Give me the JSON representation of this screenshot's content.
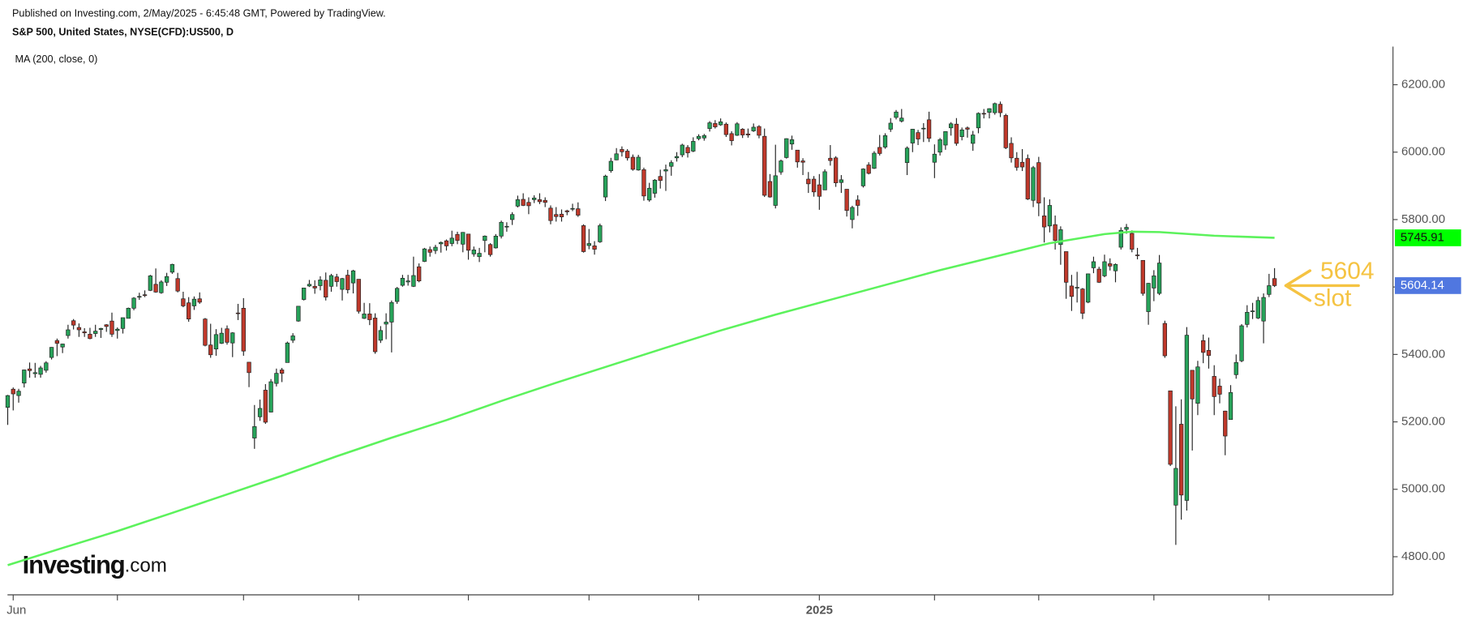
{
  "chart_data": {
    "type": "candlestick",
    "source_line": "Published on Investing.com, 2/May/2025 - 6:45:48 GMT, Powered by TradingView.",
    "title": "S&P 500, United States, NYSE(CFD):US500, D",
    "logo": {
      "main": "Investing",
      "suffix": ".com"
    },
    "annotation": {
      "value": "5604",
      "label": "slot",
      "color": "#f5c342"
    },
    "up_color": "#27a35a",
    "down_color": "#c0392b",
    "ylim": [
      4687,
      6313
    ],
    "yticks": [
      {
        "value": 4800,
        "label": "4800.00"
      },
      {
        "value": 5000,
        "label": "5000.00"
      },
      {
        "value": 5200,
        "label": "5200.00"
      },
      {
        "value": 5400,
        "label": "5400.00"
      },
      {
        "value": 5600,
        "label": "5600.00"
      },
      {
        "value": 5800,
        "label": "5800.00"
      },
      {
        "value": 6000,
        "label": "6000.00"
      },
      {
        "value": 6200,
        "label": "6200.00"
      }
    ],
    "xlim": [
      -1.4,
      252.6
    ],
    "xticks": [
      {
        "value": 1,
        "label": "Jun"
      },
      {
        "value": 20,
        "label": null
      },
      {
        "value": 43,
        "label": null
      },
      {
        "value": 64,
        "label": null
      },
      {
        "value": 84,
        "label": null
      },
      {
        "value": 106,
        "label": null
      },
      {
        "value": 126,
        "label": null
      },
      {
        "value": 148,
        "label": "2025"
      },
      {
        "value": 169,
        "label": null
      },
      {
        "value": 188,
        "label": null
      },
      {
        "value": 209,
        "label": null
      },
      {
        "value": 230,
        "label": null
      }
    ],
    "ma": {
      "name": "MA (200, close, 0)",
      "color": "#5cf25c",
      "tag_color": "#00ff00",
      "x": [
        0,
        10,
        20,
        30,
        40,
        50,
        60,
        70,
        80,
        90,
        100,
        110,
        120,
        130,
        140,
        150,
        160,
        170,
        180,
        190,
        200,
        205,
        210,
        220,
        231
      ],
      "values": [
        4775,
        4826,
        4876,
        4930,
        4985,
        5040,
        5098,
        5153,
        5205,
        5262,
        5316,
        5368,
        5420,
        5471,
        5518,
        5562,
        5606,
        5650,
        5690,
        5730,
        5757,
        5764,
        5763,
        5752,
        5745.91
      ]
    },
    "last_tag_color": "#5077e0",
    "ohlc": [
      [
        5243,
        5280,
        5191,
        5278
      ],
      [
        5297,
        5302,
        5234,
        5283
      ],
      [
        5278,
        5298,
        5257,
        5291
      ],
      [
        5315,
        5355,
        5302,
        5354
      ],
      [
        5357,
        5376,
        5331,
        5352
      ],
      [
        5343,
        5375,
        5331,
        5346
      ],
      [
        5341,
        5366,
        5331,
        5360
      ],
      [
        5353,
        5380,
        5346,
        5375
      ],
      [
        5391,
        5422,
        5385,
        5421
      ],
      [
        5441,
        5447,
        5395,
        5433
      ],
      [
        5422,
        5432,
        5404,
        5431
      ],
      [
        5456,
        5488,
        5447,
        5473
      ],
      [
        5500,
        5505,
        5474,
        5487
      ],
      [
        5480,
        5492,
        5452,
        5473
      ],
      [
        5467,
        5478,
        5452,
        5464
      ],
      [
        5460,
        5479,
        5445,
        5447
      ],
      [
        5462,
        5488,
        5452,
        5469
      ],
      [
        5474,
        5479,
        5449,
        5477
      ],
      [
        5488,
        5490,
        5467,
        5483
      ],
      [
        5499,
        5524,
        5452,
        5460
      ],
      [
        5471,
        5480,
        5447,
        5475
      ],
      [
        5477,
        5509,
        5462,
        5509
      ],
      [
        5507,
        5539,
        5507,
        5537
      ],
      [
        5537,
        5570,
        5531,
        5567
      ],
      [
        5572,
        5583,
        5562,
        5572
      ],
      [
        5577,
        5590,
        5570,
        5576
      ],
      [
        5590,
        5636,
        5588,
        5633
      ],
      [
        5608,
        5655,
        5583,
        5585
      ],
      [
        5583,
        5620,
        5580,
        5615
      ],
      [
        5614,
        5642,
        5603,
        5631
      ],
      [
        5644,
        5669,
        5639,
        5667
      ],
      [
        5625,
        5642,
        5584,
        5588
      ],
      [
        5565,
        5586,
        5540,
        5544
      ],
      [
        5553,
        5570,
        5497,
        5505
      ],
      [
        5544,
        5572,
        5532,
        5564
      ],
      [
        5565,
        5584,
        5550,
        5555
      ],
      [
        5505,
        5508,
        5424,
        5427
      ],
      [
        5428,
        5491,
        5390,
        5399
      ],
      [
        5416,
        5475,
        5396,
        5459
      ],
      [
        5433,
        5479,
        5431,
        5463
      ],
      [
        5476,
        5486,
        5429,
        5436
      ],
      [
        5434,
        5466,
        5392,
        5464
      ],
      [
        5523,
        5550,
        5502,
        5522
      ],
      [
        5537,
        5567,
        5396,
        5410
      ],
      [
        5377,
        5377,
        5303,
        5346
      ],
      [
        5152,
        5250,
        5120,
        5186
      ],
      [
        5215,
        5266,
        5203,
        5240
      ],
      [
        5294,
        5312,
        5194,
        5199
      ],
      [
        5229,
        5327,
        5228,
        5319
      ],
      [
        5314,
        5358,
        5305,
        5344
      ],
      [
        5354,
        5360,
        5318,
        5344
      ],
      [
        5376,
        5438,
        5376,
        5434
      ],
      [
        5442,
        5463,
        5434,
        5455
      ],
      [
        5499,
        5543,
        5497,
        5543
      ],
      [
        5563,
        5598,
        5560,
        5597
      ],
      [
        5603,
        5621,
        5600,
        5608
      ],
      [
        5602,
        5620,
        5580,
        5597
      ],
      [
        5604,
        5632,
        5590,
        5621
      ],
      [
        5620,
        5643,
        5560,
        5570
      ],
      [
        5602,
        5639,
        5586,
        5634
      ],
      [
        5630,
        5639,
        5601,
        5616
      ],
      [
        5593,
        5627,
        5560,
        5625
      ],
      [
        5635,
        5651,
        5581,
        5592
      ],
      [
        5612,
        5651,
        5581,
        5648
      ],
      [
        5623,
        5623,
        5521,
        5528
      ],
      [
        5507,
        5553,
        5505,
        5520
      ],
      [
        5520,
        5552,
        5487,
        5503
      ],
      [
        5508,
        5522,
        5402,
        5408
      ],
      [
        5442,
        5484,
        5434,
        5471
      ],
      [
        5490,
        5522,
        5445,
        5496
      ],
      [
        5496,
        5560,
        5406,
        5554
      ],
      [
        5557,
        5600,
        5550,
        5596
      ],
      [
        5605,
        5636,
        5601,
        5626
      ],
      [
        5615,
        5636,
        5604,
        5618
      ],
      [
        5602,
        5690,
        5600,
        5634
      ],
      [
        5660,
        5670,
        5614,
        5618
      ],
      [
        5676,
        5716,
        5674,
        5713
      ],
      [
        5711,
        5720,
        5690,
        5703
      ],
      [
        5708,
        5725,
        5698,
        5718
      ],
      [
        5728,
        5735,
        5702,
        5732
      ],
      [
        5737,
        5741,
        5708,
        5722
      ],
      [
        5729,
        5767,
        5721,
        5745
      ],
      [
        5756,
        5764,
        5727,
        5738
      ],
      [
        5727,
        5763,
        5703,
        5762
      ],
      [
        5757,
        5757,
        5681,
        5709
      ],
      [
        5698,
        5720,
        5690,
        5710
      ],
      [
        5690,
        5716,
        5674,
        5700
      ],
      [
        5738,
        5753,
        5703,
        5751
      ],
      [
        5726,
        5730,
        5690,
        5696
      ],
      [
        5716,
        5757,
        5714,
        5751
      ],
      [
        5751,
        5797,
        5744,
        5792
      ],
      [
        5778,
        5792,
        5764,
        5780
      ],
      [
        5800,
        5822,
        5784,
        5815
      ],
      [
        5840,
        5871,
        5836,
        5859
      ],
      [
        5860,
        5878,
        5840,
        5842
      ],
      [
        5851,
        5866,
        5816,
        5841
      ],
      [
        5859,
        5872,
        5849,
        5864
      ],
      [
        5859,
        5878,
        5846,
        5853
      ],
      [
        5857,
        5866,
        5837,
        5851
      ],
      [
        5834,
        5842,
        5786,
        5797
      ],
      [
        5815,
        5837,
        5794,
        5809
      ],
      [
        5816,
        5830,
        5794,
        5808
      ],
      [
        5826,
        5829,
        5813,
        5823
      ],
      [
        5832,
        5847,
        5825,
        5833
      ],
      [
        5832,
        5851,
        5808,
        5813
      ],
      [
        5782,
        5786,
        5702,
        5705
      ],
      [
        5723,
        5772,
        5712,
        5729
      ],
      [
        5722,
        5736,
        5696,
        5712
      ],
      [
        5734,
        5788,
        5731,
        5782
      ],
      [
        5867,
        5933,
        5855,
        5929
      ],
      [
        5945,
        5983,
        5939,
        5973
      ],
      [
        5977,
        6012,
        5976,
        5995
      ],
      [
        6008,
        6017,
        5987,
        6001
      ],
      [
        6003,
        6009,
        5975,
        5983
      ],
      [
        5985,
        5993,
        5945,
        5949
      ],
      [
        5947,
        5992,
        5945,
        5985
      ],
      [
        5948,
        5954,
        5856,
        5870
      ],
      [
        5858,
        5909,
        5853,
        5893
      ],
      [
        5878,
        5920,
        5865,
        5917
      ],
      [
        5928,
        5948,
        5892,
        5916
      ],
      [
        5944,
        5963,
        5885,
        5948
      ],
      [
        5958,
        5976,
        5930,
        5969
      ],
      [
        5983,
        6000,
        5972,
        5987
      ],
      [
        5992,
        6025,
        5985,
        6021
      ],
      [
        6014,
        6021,
        5984,
        5998
      ],
      [
        6003,
        6044,
        6000,
        6032
      ],
      [
        6040,
        6053,
        6035,
        6047
      ],
      [
        6042,
        6054,
        6034,
        6049
      ],
      [
        6070,
        6092,
        6061,
        6087
      ],
      [
        6085,
        6095,
        6070,
        6075
      ],
      [
        6081,
        6100,
        6078,
        6090
      ],
      [
        6083,
        6088,
        6045,
        6052
      ],
      [
        6055,
        6062,
        6020,
        6034
      ],
      [
        6050,
        6089,
        6048,
        6084
      ],
      [
        6068,
        6071,
        6042,
        6051
      ],
      [
        6054,
        6070,
        6043,
        6051
      ],
      [
        6063,
        6085,
        6060,
        6074
      ],
      [
        6076,
        6080,
        6041,
        6050
      ],
      [
        6047,
        6070,
        5867,
        5872
      ],
      [
        5913,
        5935,
        5865,
        5867
      ],
      [
        5842,
        6022,
        5833,
        5930
      ],
      [
        5941,
        5978,
        5933,
        5974
      ],
      [
        5984,
        6041,
        5981,
        6040
      ],
      [
        6024,
        6049,
        6007,
        6037
      ],
      [
        6006,
        6006,
        5954,
        5971
      ],
      [
        5974,
        5982,
        5932,
        5970
      ],
      [
        5920,
        5941,
        5879,
        5906
      ],
      [
        5920,
        5929,
        5868,
        5882
      ],
      [
        5903,
        5935,
        5829,
        5869
      ],
      [
        5888,
        5949,
        5888,
        5942
      ],
      [
        5982,
        6021,
        5960,
        5975
      ],
      [
        5983,
        5988,
        5897,
        5909
      ],
      [
        5910,
        5932,
        5879,
        5918
      ],
      [
        5890,
        5890,
        5809,
        5827
      ],
      [
        5800,
        5841,
        5774,
        5836
      ],
      [
        5858,
        5872,
        5811,
        5842
      ],
      [
        5900,
        5952,
        5895,
        5950
      ],
      [
        5962,
        5970,
        5934,
        5937
      ],
      [
        5952,
        6003,
        5950,
        5997
      ],
      [
        6014,
        6051,
        5990,
        5996
      ],
      [
        6015,
        6056,
        6010,
        6049
      ],
      [
        6068,
        6101,
        6060,
        6086
      ],
      [
        6103,
        6125,
        6097,
        6119
      ],
      [
        6092,
        6128,
        6088,
        6101
      ],
      [
        5969,
        6017,
        5932,
        6012
      ],
      [
        6027,
        6069,
        6000,
        6068
      ],
      [
        6058,
        6066,
        6021,
        6039
      ],
      [
        6069,
        6086,
        6030,
        6071
      ],
      [
        6096,
        6120,
        6030,
        6041
      ],
      [
        5970,
        6023,
        5923,
        5994
      ],
      [
        6000,
        6042,
        5990,
        6037
      ],
      [
        6021,
        6062,
        6007,
        6061
      ],
      [
        6072,
        6089,
        6049,
        6084
      ],
      [
        6083,
        6101,
        6019,
        6026
      ],
      [
        6046,
        6073,
        6035,
        6066
      ],
      [
        6072,
        6076,
        6043,
        6068
      ],
      [
        6026,
        6063,
        6004,
        6051
      ],
      [
        6072,
        6118,
        6056,
        6115
      ],
      [
        6115,
        6128,
        6100,
        6114
      ],
      [
        6118,
        6130,
        6100,
        6129
      ],
      [
        6117,
        6147,
        6111,
        6144
      ],
      [
        6142,
        6150,
        6104,
        6117
      ],
      [
        6109,
        6114,
        6009,
        6013
      ],
      [
        6026,
        6044,
        5969,
        5983
      ],
      [
        5982,
        6000,
        5945,
        5955
      ],
      [
        5970,
        6009,
        5944,
        5956
      ],
      [
        5981,
        5993,
        5858,
        5861
      ],
      [
        5857,
        5959,
        5837,
        5954
      ],
      [
        5969,
        5986,
        5810,
        5849
      ],
      [
        5811,
        5866,
        5732,
        5778
      ],
      [
        5781,
        5860,
        5762,
        5842
      ],
      [
        5785,
        5812,
        5711,
        5738
      ],
      [
        5726,
        5780,
        5666,
        5770
      ],
      [
        5705,
        5705,
        5565,
        5614
      ],
      [
        5603,
        5636,
        5529,
        5572
      ],
      [
        5598,
        5645,
        5554,
        5599
      ],
      [
        5594,
        5597,
        5505,
        5522
      ],
      [
        5555,
        5640,
        5552,
        5639
      ],
      [
        5657,
        5690,
        5641,
        5675
      ],
      [
        5653,
        5660,
        5612,
        5614
      ],
      [
        5633,
        5696,
        5629,
        5675
      ],
      [
        5669,
        5685,
        5649,
        5662
      ],
      [
        5648,
        5670,
        5614,
        5667
      ],
      [
        5718,
        5777,
        5711,
        5768
      ],
      [
        5771,
        5787,
        5758,
        5777
      ],
      [
        5759,
        5768,
        5703,
        5712
      ],
      [
        5695,
        5716,
        5682,
        5693
      ],
      [
        5679,
        5679,
        5574,
        5581
      ],
      [
        5527,
        5612,
        5488,
        5611
      ],
      [
        5597,
        5650,
        5558,
        5633
      ],
      [
        5581,
        5695,
        5576,
        5671
      ],
      [
        5492,
        5500,
        5390,
        5396
      ],
      [
        5292,
        5292,
        5069,
        5074
      ],
      [
        4953,
        5246,
        4835,
        5062
      ],
      [
        5193,
        5267,
        4910,
        4983
      ],
      [
        4967,
        5481,
        4937,
        5457
      ],
      [
        5353,
        5353,
        5115,
        5268
      ],
      [
        5255,
        5381,
        5220,
        5363
      ],
      [
        5441,
        5459,
        5374,
        5406
      ],
      [
        5412,
        5450,
        5358,
        5397
      ],
      [
        5335,
        5368,
        5220,
        5275
      ],
      [
        5306,
        5328,
        5255,
        5282
      ],
      [
        5232,
        5233,
        5101,
        5158
      ],
      [
        5207,
        5309,
        5207,
        5287
      ],
      [
        5340,
        5400,
        5328,
        5376
      ],
      [
        5381,
        5490,
        5377,
        5485
      ],
      [
        5489,
        5546,
        5480,
        5525
      ],
      [
        5529,
        5553,
        5505,
        5529
      ],
      [
        5508,
        5571,
        5505,
        5560
      ],
      [
        5499,
        5581,
        5433,
        5569
      ],
      [
        5578,
        5639,
        5570,
        5604
      ],
      [
        5625,
        5656,
        5600,
        5604.14
      ]
    ]
  }
}
